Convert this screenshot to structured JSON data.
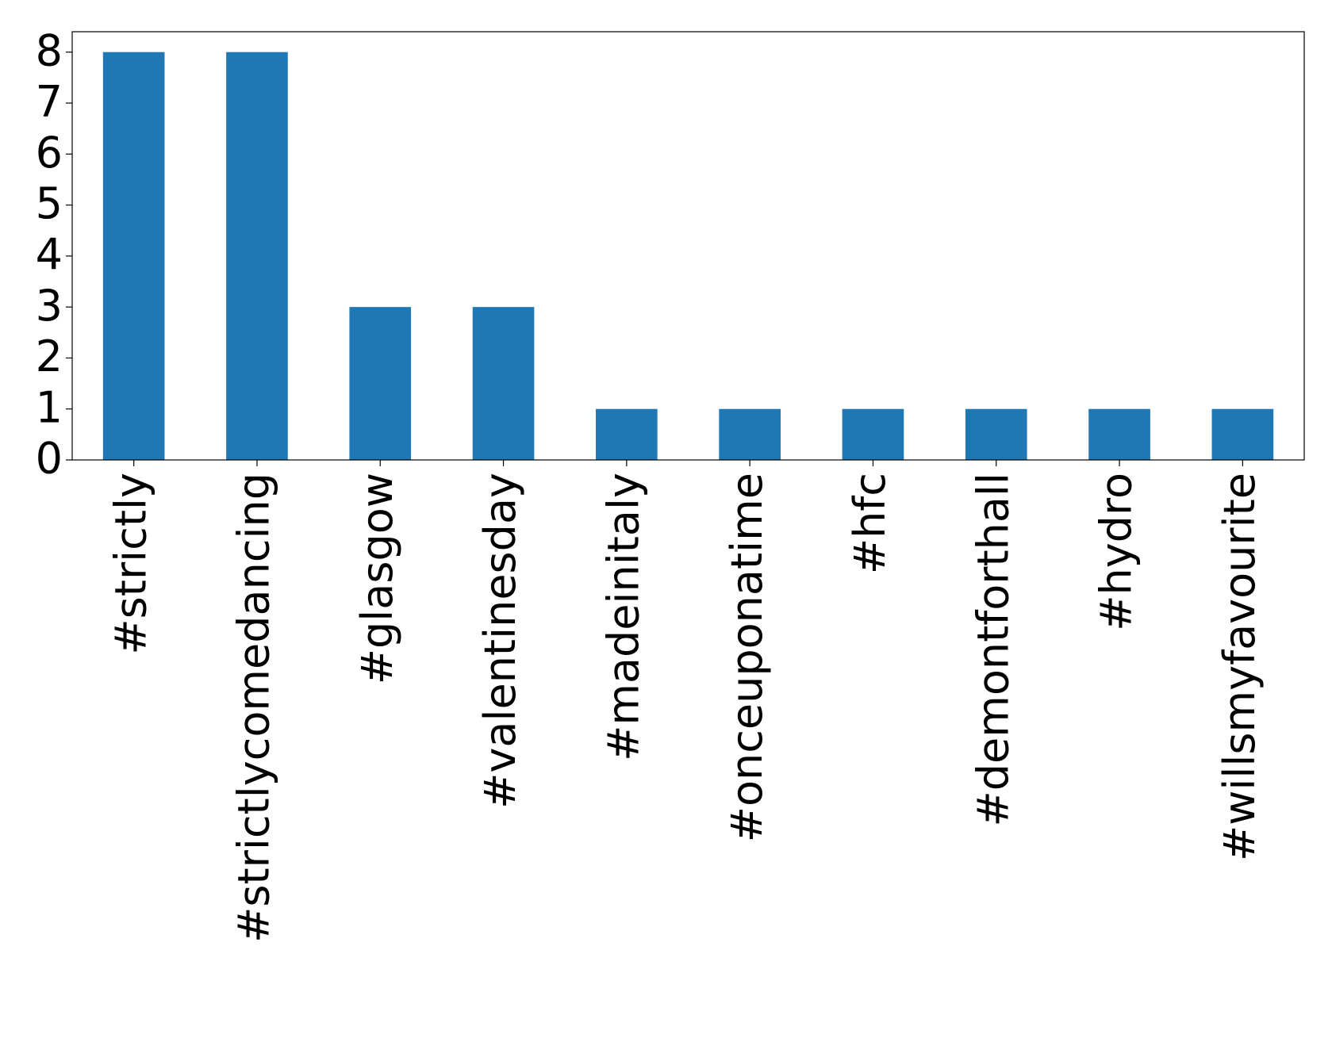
{
  "chart_data": {
    "type": "bar",
    "categories": [
      "#strictly",
      "#strictlycomedancing",
      "#glasgow",
      "#valentinesday",
      "#madeinitaly",
      "#onceuponatime",
      "#hfc",
      "#demontforthall",
      "#hydro",
      "#willsmyfavourite"
    ],
    "values": [
      8,
      8,
      3,
      3,
      1,
      1,
      1,
      1,
      1,
      1
    ],
    "color": "#1f77b4",
    "ylim": [
      0,
      8.4
    ],
    "yticks": [
      0,
      1,
      2,
      3,
      4,
      5,
      6,
      7,
      8
    ],
    "grid": false
  }
}
